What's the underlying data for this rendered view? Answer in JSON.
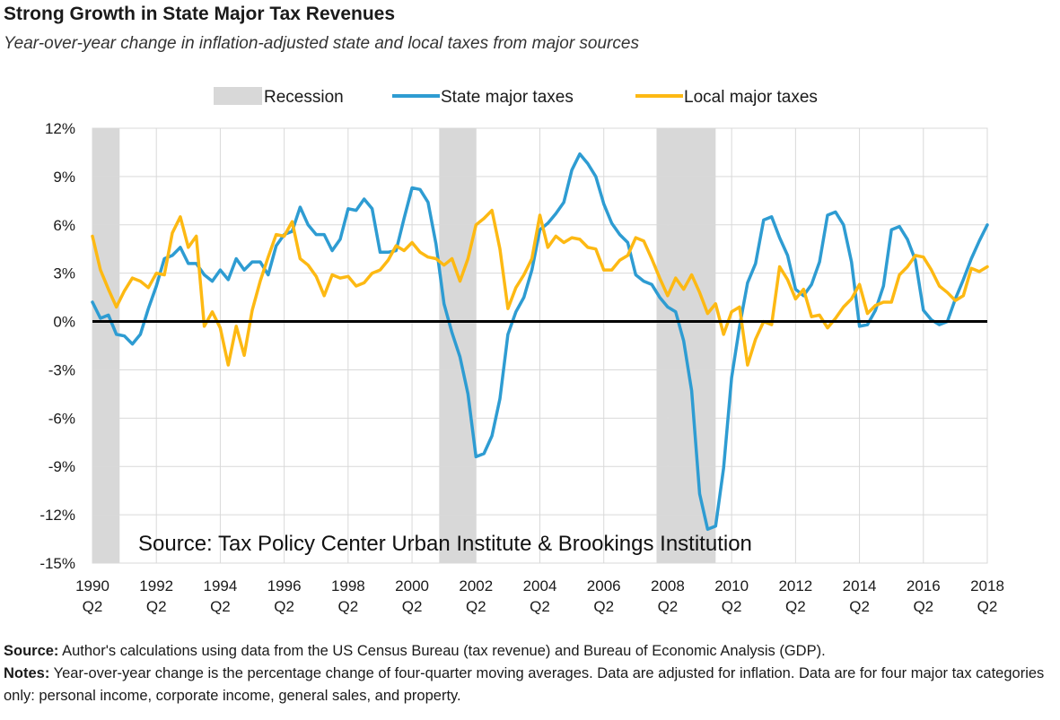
{
  "header": {
    "title": "Strong Growth in State Major Tax Revenues",
    "subtitle": "Year-over-year change in inflation-adjusted state and local taxes from major sources"
  },
  "footer": {
    "source_label": "Source:",
    "source_text": " Author's calculations using data from the US Census Bureau (tax revenue) and Bureau of Economic Analysis (GDP).",
    "notes_label": "Notes:",
    "notes_text": " Year-over-year change is the percentage change of four-quarter moving averages. Data are adjusted for inflation. Data are for four major tax categories only: personal income, corporate income, general sales, and property."
  },
  "colors": {
    "state": "#2E9CD2",
    "local": "#FDB913",
    "recession": "#D8D8D8",
    "grid": "#D9D9D9",
    "zero": "#000000"
  },
  "chart_data": {
    "type": "line",
    "title": "Strong Growth in State Major Tax Revenues",
    "ylabel": "",
    "xlabel": "",
    "ylim": [
      -15,
      12
    ],
    "xlim": [
      1990.25,
      2018.25
    ],
    "yticks": [
      12,
      9,
      6,
      3,
      0,
      -3,
      -6,
      -9,
      -12,
      -15
    ],
    "ytick_labels": [
      "12%",
      "9%",
      "6%",
      "3%",
      "0%",
      "-3%",
      "-6%",
      "-9%",
      "-12%",
      "-15%"
    ],
    "xticks": [
      1990.25,
      1992.25,
      1994.25,
      1996.25,
      1998.25,
      2000.25,
      2002.25,
      2004.25,
      2006.25,
      2008.25,
      2010.25,
      2012.25,
      2014.25,
      2016.25,
      2018.25
    ],
    "xtick_years": [
      "1990",
      "1992",
      "1994",
      "1996",
      "1998",
      "2000",
      "2002",
      "2004",
      "2006",
      "2008",
      "2010",
      "2012",
      "2014",
      "2016",
      "2018"
    ],
    "xtick_quarter": "Q2",
    "grid": true,
    "legend_position": "top-center",
    "legend": {
      "recession": "Recession",
      "state": "State major taxes",
      "local": "Local major taxes"
    },
    "annotation": "Source:  Tax Policy Center Urban Institute & Brookings Institution",
    "recessions": [
      [
        1990.25,
        1991.1
      ],
      [
        2001.1,
        2002.25
      ],
      [
        2007.9,
        2009.75
      ]
    ],
    "series": [
      {
        "name": "State major taxes",
        "points": [
          [
            1990.25,
            1.2
          ],
          [
            1990.5,
            0.2
          ],
          [
            1990.75,
            0.4
          ],
          [
            1991.0,
            -0.8
          ],
          [
            1991.25,
            -0.9
          ],
          [
            1991.5,
            -1.4
          ],
          [
            1991.75,
            -0.8
          ],
          [
            1992.0,
            0.8
          ],
          [
            1992.25,
            2.2
          ],
          [
            1992.5,
            3.9
          ],
          [
            1992.75,
            4.1
          ],
          [
            1993.0,
            4.6
          ],
          [
            1993.25,
            3.6
          ],
          [
            1993.5,
            3.6
          ],
          [
            1993.75,
            2.9
          ],
          [
            1994.0,
            2.5
          ],
          [
            1994.25,
            3.2
          ],
          [
            1994.5,
            2.6
          ],
          [
            1994.75,
            3.9
          ],
          [
            1995.0,
            3.2
          ],
          [
            1995.25,
            3.7
          ],
          [
            1995.5,
            3.7
          ],
          [
            1995.75,
            2.9
          ],
          [
            1996.0,
            4.7
          ],
          [
            1996.25,
            5.4
          ],
          [
            1996.5,
            5.6
          ],
          [
            1996.75,
            7.1
          ],
          [
            1997.0,
            6.0
          ],
          [
            1997.25,
            5.4
          ],
          [
            1997.5,
            5.4
          ],
          [
            1997.75,
            4.4
          ],
          [
            1998.0,
            5.1
          ],
          [
            1998.25,
            7.0
          ],
          [
            1998.5,
            6.9
          ],
          [
            1998.75,
            7.6
          ],
          [
            1999.0,
            7.0
          ],
          [
            1999.25,
            4.3
          ],
          [
            1999.5,
            4.3
          ],
          [
            1999.75,
            4.4
          ],
          [
            2000.0,
            6.4
          ],
          [
            2000.25,
            8.3
          ],
          [
            2000.5,
            8.2
          ],
          [
            2000.75,
            7.4
          ],
          [
            2001.0,
            4.8
          ],
          [
            2001.25,
            1.1
          ],
          [
            2001.5,
            -0.7
          ],
          [
            2001.75,
            -2.2
          ],
          [
            2002.0,
            -4.5
          ],
          [
            2002.25,
            -8.4
          ],
          [
            2002.5,
            -8.2
          ],
          [
            2002.75,
            -7.1
          ],
          [
            2003.0,
            -4.8
          ],
          [
            2003.25,
            -0.8
          ],
          [
            2003.5,
            0.6
          ],
          [
            2003.75,
            1.5
          ],
          [
            2004.0,
            3.2
          ],
          [
            2004.25,
            5.7
          ],
          [
            2004.5,
            6.1
          ],
          [
            2004.75,
            6.7
          ],
          [
            2005.0,
            7.4
          ],
          [
            2005.25,
            9.4
          ],
          [
            2005.5,
            10.4
          ],
          [
            2005.75,
            9.8
          ],
          [
            2006.0,
            9.0
          ],
          [
            2006.25,
            7.3
          ],
          [
            2006.5,
            6.1
          ],
          [
            2006.75,
            5.4
          ],
          [
            2007.0,
            4.9
          ],
          [
            2007.25,
            2.9
          ],
          [
            2007.5,
            2.5
          ],
          [
            2007.75,
            2.3
          ],
          [
            2008.0,
            1.5
          ],
          [
            2008.25,
            0.9
          ],
          [
            2008.5,
            0.6
          ],
          [
            2008.75,
            -1.2
          ],
          [
            2009.0,
            -4.3
          ],
          [
            2009.25,
            -10.7
          ],
          [
            2009.5,
            -12.9
          ],
          [
            2009.75,
            -12.7
          ],
          [
            2010.0,
            -9.1
          ],
          [
            2010.25,
            -3.5
          ],
          [
            2010.5,
            -0.3
          ],
          [
            2010.75,
            2.4
          ],
          [
            2011.0,
            3.6
          ],
          [
            2011.25,
            6.3
          ],
          [
            2011.5,
            6.5
          ],
          [
            2011.75,
            5.2
          ],
          [
            2012.0,
            4.1
          ],
          [
            2012.25,
            2.0
          ],
          [
            2012.5,
            1.6
          ],
          [
            2012.75,
            2.3
          ],
          [
            2013.0,
            3.7
          ],
          [
            2013.25,
            6.6
          ],
          [
            2013.5,
            6.8
          ],
          [
            2013.75,
            6.0
          ],
          [
            2014.0,
            3.7
          ],
          [
            2014.25,
            -0.3
          ],
          [
            2014.5,
            -0.2
          ],
          [
            2014.75,
            0.7
          ],
          [
            2015.0,
            2.2
          ],
          [
            2015.25,
            5.7
          ],
          [
            2015.5,
            5.9
          ],
          [
            2015.75,
            5.1
          ],
          [
            2016.0,
            3.8
          ],
          [
            2016.25,
            0.7
          ],
          [
            2016.5,
            0.1
          ],
          [
            2016.75,
            -0.2
          ],
          [
            2017.0,
            0.0
          ],
          [
            2017.25,
            1.4
          ],
          [
            2017.5,
            2.6
          ],
          [
            2017.75,
            3.9
          ],
          [
            2018.0,
            5.0
          ],
          [
            2018.25,
            6.0
          ]
        ]
      },
      {
        "name": "Local major taxes",
        "points": [
          [
            1990.25,
            5.3
          ],
          [
            1990.5,
            3.2
          ],
          [
            1990.75,
            2.0
          ],
          [
            1991.0,
            0.9
          ],
          [
            1991.25,
            1.9
          ],
          [
            1991.5,
            2.7
          ],
          [
            1991.75,
            2.5
          ],
          [
            1992.0,
            2.1
          ],
          [
            1992.25,
            3.0
          ],
          [
            1992.5,
            2.9
          ],
          [
            1992.75,
            5.5
          ],
          [
            1993.0,
            6.5
          ],
          [
            1993.25,
            4.6
          ],
          [
            1993.5,
            5.3
          ],
          [
            1993.75,
            -0.3
          ],
          [
            1994.0,
            0.6
          ],
          [
            1994.25,
            -0.4
          ],
          [
            1994.5,
            -2.7
          ],
          [
            1994.75,
            -0.3
          ],
          [
            1995.0,
            -2.1
          ],
          [
            1995.25,
            0.7
          ],
          [
            1995.5,
            2.5
          ],
          [
            1995.75,
            4.0
          ],
          [
            1996.0,
            5.4
          ],
          [
            1996.25,
            5.3
          ],
          [
            1996.5,
            6.2
          ],
          [
            1996.75,
            3.9
          ],
          [
            1997.0,
            3.5
          ],
          [
            1997.25,
            2.8
          ],
          [
            1997.5,
            1.6
          ],
          [
            1997.75,
            2.9
          ],
          [
            1998.0,
            2.7
          ],
          [
            1998.25,
            2.8
          ],
          [
            1998.5,
            2.2
          ],
          [
            1998.75,
            2.4
          ],
          [
            1999.0,
            3.0
          ],
          [
            1999.25,
            3.2
          ],
          [
            1999.5,
            3.8
          ],
          [
            1999.75,
            4.7
          ],
          [
            2000.0,
            4.4
          ],
          [
            2000.25,
            4.9
          ],
          [
            2000.5,
            4.3
          ],
          [
            2000.75,
            4.0
          ],
          [
            2001.0,
            3.9
          ],
          [
            2001.25,
            3.5
          ],
          [
            2001.5,
            3.9
          ],
          [
            2001.75,
            2.5
          ],
          [
            2002.0,
            3.9
          ],
          [
            2002.25,
            6.0
          ],
          [
            2002.5,
            6.4
          ],
          [
            2002.75,
            6.9
          ],
          [
            2003.0,
            4.5
          ],
          [
            2003.25,
            0.8
          ],
          [
            2003.5,
            2.1
          ],
          [
            2003.75,
            2.9
          ],
          [
            2004.0,
            3.9
          ],
          [
            2004.25,
            6.6
          ],
          [
            2004.5,
            4.6
          ],
          [
            2004.75,
            5.3
          ],
          [
            2005.0,
            4.9
          ],
          [
            2005.25,
            5.2
          ],
          [
            2005.5,
            5.1
          ],
          [
            2005.75,
            4.6
          ],
          [
            2006.0,
            4.5
          ],
          [
            2006.25,
            3.2
          ],
          [
            2006.5,
            3.2
          ],
          [
            2006.75,
            3.8
          ],
          [
            2007.0,
            4.1
          ],
          [
            2007.25,
            5.2
          ],
          [
            2007.5,
            5.0
          ],
          [
            2007.75,
            3.9
          ],
          [
            2008.0,
            2.7
          ],
          [
            2008.25,
            1.6
          ],
          [
            2008.5,
            2.7
          ],
          [
            2008.75,
            2.0
          ],
          [
            2009.0,
            2.9
          ],
          [
            2009.25,
            1.8
          ],
          [
            2009.5,
            0.5
          ],
          [
            2009.75,
            1.1
          ],
          [
            2010.0,
            -0.8
          ],
          [
            2010.25,
            0.6
          ],
          [
            2010.5,
            0.9
          ],
          [
            2010.75,
            -2.7
          ],
          [
            2011.0,
            -1.1
          ],
          [
            2011.25,
            0.0
          ],
          [
            2011.5,
            -0.2
          ],
          [
            2011.75,
            3.4
          ],
          [
            2012.0,
            2.6
          ],
          [
            2012.25,
            1.4
          ],
          [
            2012.5,
            2.0
          ],
          [
            2012.75,
            0.3
          ],
          [
            2013.0,
            0.4
          ],
          [
            2013.25,
            -0.4
          ],
          [
            2013.5,
            0.2
          ],
          [
            2013.75,
            0.9
          ],
          [
            2014.0,
            1.4
          ],
          [
            2014.25,
            2.3
          ],
          [
            2014.5,
            0.5
          ],
          [
            2014.75,
            1.0
          ],
          [
            2015.0,
            1.2
          ],
          [
            2015.25,
            1.2
          ],
          [
            2015.5,
            2.9
          ],
          [
            2015.75,
            3.4
          ],
          [
            2016.0,
            4.1
          ],
          [
            2016.25,
            4.0
          ],
          [
            2016.5,
            3.2
          ],
          [
            2016.75,
            2.2
          ],
          [
            2017.0,
            1.8
          ],
          [
            2017.25,
            1.3
          ],
          [
            2017.5,
            1.6
          ],
          [
            2017.75,
            3.3
          ],
          [
            2018.0,
            3.1
          ],
          [
            2018.25,
            3.4
          ]
        ]
      }
    ]
  }
}
